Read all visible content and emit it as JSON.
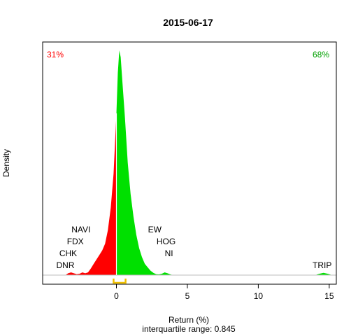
{
  "chart_data": {
    "type": "area",
    "title": "2015-06-17",
    "xlabel": "Return (%)",
    "ylabel": "Density",
    "subtitle": "interquartile range: 0.845",
    "xlim": [
      -5.2,
      15.5
    ],
    "x_ticks": [
      0,
      5,
      10,
      15
    ],
    "neg_share_label": "31%",
    "pos_share_label": "68%",
    "colors": {
      "negative": "#ff0000",
      "positive": "#00e000",
      "iqr": "#f0c000",
      "zero_line": "#ffffff",
      "baseline": "#bebebe"
    },
    "density": {
      "x": [
        -3.6,
        -3.4,
        -3.2,
        -3.0,
        -2.8,
        -2.6,
        -2.4,
        -2.2,
        -2.0,
        -1.8,
        -1.6,
        -1.4,
        -1.2,
        -1.0,
        -0.8,
        -0.6,
        -0.4,
        -0.2,
        0.0,
        0.1,
        0.2,
        0.3,
        0.4,
        0.6,
        0.8,
        1.0,
        1.2,
        1.4,
        1.6,
        1.8,
        2.0,
        2.2,
        2.4,
        2.6,
        2.8,
        3.0,
        3.2,
        3.4,
        3.6,
        3.8,
        4.0,
        4.2,
        14.0,
        14.3,
        14.6,
        14.9,
        15.2
      ],
      "y": [
        0.0,
        0.008,
        0.012,
        0.008,
        0.004,
        0.006,
        0.012,
        0.008,
        0.012,
        0.03,
        0.05,
        0.07,
        0.09,
        0.11,
        0.14,
        0.2,
        0.3,
        0.45,
        0.72,
        0.9,
        1.0,
        0.97,
        0.88,
        0.7,
        0.5,
        0.36,
        0.26,
        0.18,
        0.12,
        0.08,
        0.05,
        0.035,
        0.02,
        0.01,
        0.004,
        0.003,
        0.006,
        0.012,
        0.008,
        0.003,
        0.0,
        0.0,
        0.0,
        0.006,
        0.01,
        0.006,
        0.0
      ]
    },
    "iqr": [
      -0.2,
      0.645
    ],
    "annotations": [
      {
        "text": "NAVI",
        "x": -2.5,
        "row": 4
      },
      {
        "text": "FDX",
        "x": -2.9,
        "row": 3
      },
      {
        "text": "CHK",
        "x": -3.4,
        "row": 2
      },
      {
        "text": "DNR",
        "x": -3.6,
        "row": 1
      },
      {
        "text": "EW",
        "x": 2.7,
        "row": 4
      },
      {
        "text": "HOG",
        "x": 3.5,
        "row": 3
      },
      {
        "text": "NI",
        "x": 3.7,
        "row": 2
      },
      {
        "text": "TRIP",
        "x": 14.5,
        "row": 1
      }
    ]
  }
}
